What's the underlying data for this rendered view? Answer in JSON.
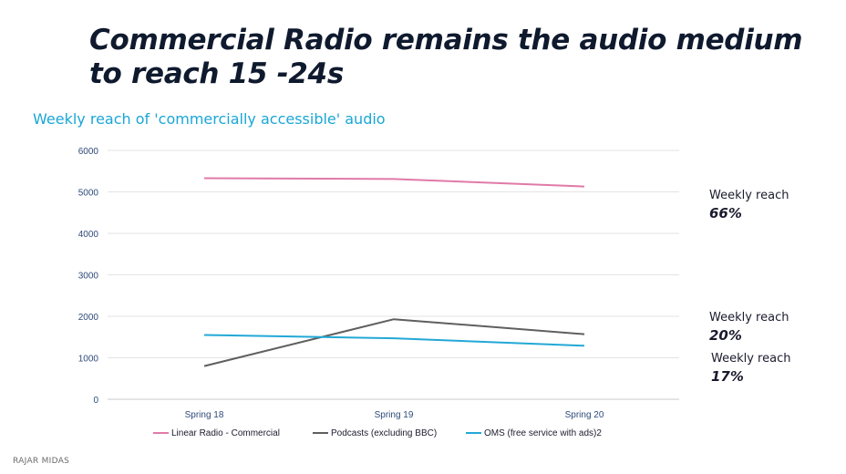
{
  "header": {
    "title": "Commercial Radio remains the audio medium to reach 15 -24s"
  },
  "chart_data": {
    "type": "line",
    "title": "Weekly reach of 'commercially accessible' audio",
    "categories": [
      "Spring 18",
      "Spring 19",
      "Spring 20"
    ],
    "yticks": [
      0,
      1000,
      2000,
      3000,
      4000,
      5000,
      6000
    ],
    "ylim": [
      0,
      6000
    ],
    "grid": true,
    "legend_position": "bottom",
    "series": [
      {
        "name": "Linear Radio - Commercial",
        "values": [
          5330,
          5310,
          5130
        ],
        "color": "#e07aa8"
      },
      {
        "name": "Podcasts (excluding BBC)",
        "values": [
          800,
          1930,
          1570
        ],
        "color": "#5f5f5f"
      },
      {
        "name": "OMS (free service with ads)2",
        "values": [
          1550,
          1470,
          1290
        ],
        "color": "#22a8d6"
      }
    ]
  },
  "annotations": [
    {
      "label": "Weekly reach",
      "value": "66%"
    },
    {
      "label": "Weekly reach",
      "value": "20%"
    },
    {
      "label": "Weekly reach",
      "value": "17%"
    }
  ],
  "footer": {
    "source": "RAJAR MIDAS"
  }
}
